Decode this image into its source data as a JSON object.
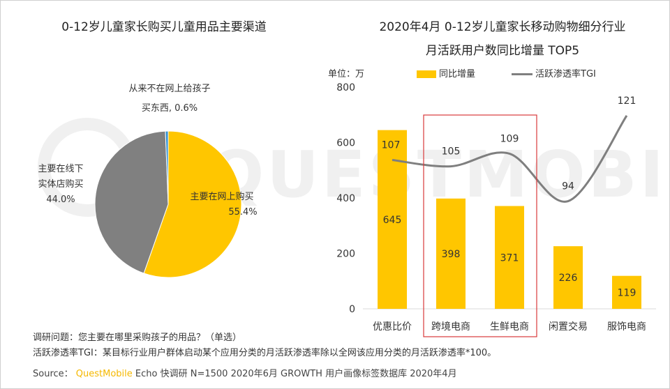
{
  "colors": {
    "accent": "#ffc600",
    "pie_online": "#ffc600",
    "pie_offline": "#808080",
    "pie_never": "#2f8fd1",
    "line": "#7f7f7f",
    "highlight_box": "#d9393b",
    "watermark": "#f0f0f0"
  },
  "watermark": "QUESTMOBILE",
  "left_chart": {
    "title": "0-12岁儿童家长购买儿童用品主要渠道",
    "chart_data": {
      "type": "pie",
      "title": "0-12岁儿童家长购买儿童用品主要渠道",
      "slices": [
        {
          "name": "主要在网上购买",
          "value": 55.4,
          "color": "#ffc600"
        },
        {
          "name": "主要在线下实体店购买",
          "value": 44.0,
          "color": "#808080"
        },
        {
          "name": "从来不在网上给孩子买东西",
          "value": 0.6,
          "color": "#2f8fd1"
        }
      ]
    },
    "labels": {
      "online_line1": "主要在网上购买",
      "online_line2": "55.4%",
      "offline_line1": "主要在线下",
      "offline_line2": "实体店购买",
      "offline_line3": "44.0%",
      "never_line1": "从来不在网上给孩子",
      "never_line2": "买东西, 0.6%"
    }
  },
  "right_chart": {
    "title_line1": "2020年4月 0-12岁儿童家长移动购物细分行业",
    "title_line2": "月活跃用户数同比增量 TOP5",
    "unit": "单位：万",
    "legend_bar": "同比增量",
    "legend_line": "活跃渗透率TGI",
    "chart_data": {
      "type": "bar",
      "categories": [
        "优惠比价",
        "跨境电商",
        "生鲜电商",
        "闲置交易",
        "服饰电商"
      ],
      "series": [
        {
          "name": "同比增量",
          "type": "bar",
          "values": [
            645,
            398,
            371,
            226,
            119
          ]
        },
        {
          "name": "活跃渗透率TGI",
          "type": "line",
          "values": [
            107,
            105,
            109,
            94,
            121
          ]
        }
      ],
      "ylim": [
        0,
        800
      ],
      "yticks": [
        "0",
        "200",
        "400",
        "600",
        "800"
      ],
      "tgi_range": [
        60,
        130
      ],
      "highlighted_categories": [
        "跨境电商",
        "生鲜电商"
      ],
      "legend": "top"
    }
  },
  "notes": {
    "question": "调研问题：您主要在哪里采购孩子的用品？（单选）",
    "tgi_definition": "活跃渗透率TGI：某目标行业用户群体启动某个应用分类的月活跃渗透率除以全网该应用分类的月活跃渗透率*100。",
    "source_prefix": "Source：",
    "source_brand": "QuestMobile",
    "source_rest": " Echo 快调研 N=1500 2020年6月 GROWTH 用户画像标签数据库 2020年4月"
  }
}
